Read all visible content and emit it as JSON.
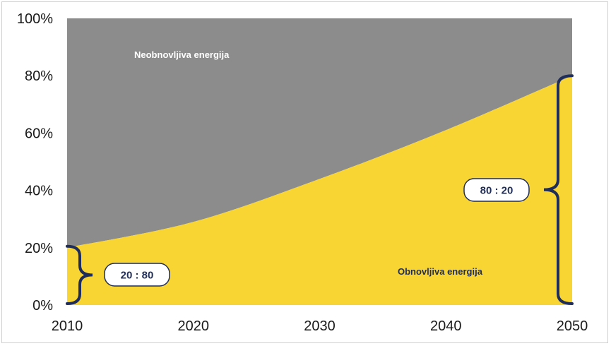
{
  "chart_data": {
    "type": "area",
    "stacked": true,
    "x": [
      2010,
      2020,
      2030,
      2040,
      2050
    ],
    "xlim": [
      2010,
      2050
    ],
    "ylim": [
      0,
      100
    ],
    "y_unit": "%",
    "x_ticks": [
      "2010",
      "2020",
      "2030",
      "2040",
      "2050"
    ],
    "y_ticks": [
      "0%",
      "20%",
      "40%",
      "60%",
      "80%",
      "100%"
    ],
    "series": [
      {
        "name": "Obnovljiva energija",
        "values": [
          20,
          29,
          44,
          61,
          80
        ],
        "color": "#f9d534"
      },
      {
        "name": "Neobnovljiva energija",
        "values": [
          80,
          71,
          56,
          39,
          20
        ],
        "color": "#8c8c8c"
      }
    ],
    "annotations": [
      {
        "text": "20 : 80",
        "x": 2010,
        "y_range": [
          0,
          20
        ]
      },
      {
        "text": "80 : 20",
        "x": 2050,
        "y_range": [
          0,
          80
        ]
      }
    ],
    "grid": false,
    "legend": "inline"
  },
  "colors": {
    "renewable": "#f9d534",
    "nonrenewable": "#8c8c8c",
    "brace": "#1f2d5a",
    "label_renewable": "#1f2d5a",
    "label_nonrenewable": "#ffffff"
  }
}
